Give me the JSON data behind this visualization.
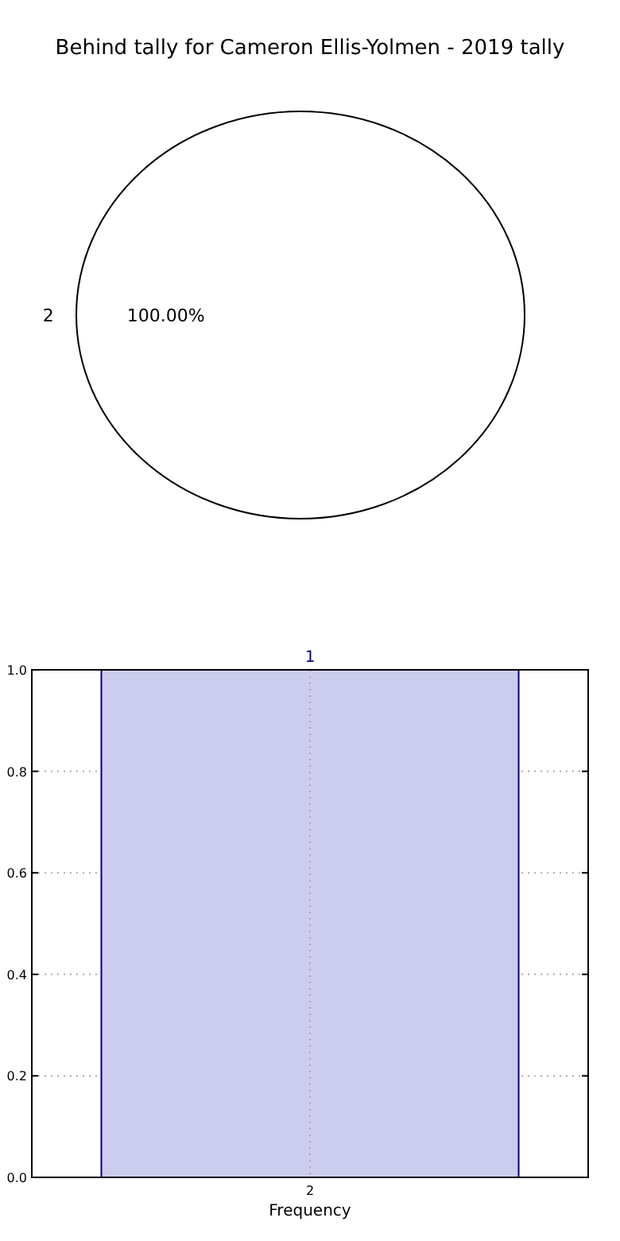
{
  "chart_data": [
    {
      "type": "pie",
      "title": "Behind tally for Cameron Ellis-Yolmen - 2019 tally",
      "categories": [
        "2"
      ],
      "values": [
        100
      ],
      "colors": [
        "#ffffff"
      ],
      "value_labels": [
        "100.00%"
      ]
    },
    {
      "type": "bar",
      "xlabel": "Frequency",
      "categories": [
        "2"
      ],
      "values": [
        1
      ],
      "color": "#ccccee",
      "ylim": [
        0,
        1
      ],
      "yticks": [
        {
          "value": 0,
          "label": "0.0"
        },
        {
          "value": 0.2,
          "label": "0.2"
        },
        {
          "value": 0.4,
          "label": "0.4"
        },
        {
          "value": 0.6,
          "label": "0.6"
        },
        {
          "value": 0.8,
          "label": "0.8"
        },
        {
          "value": 1,
          "label": "1.0"
        }
      ],
      "grid": true,
      "line_style": "dotted",
      "data_labels": true
    }
  ]
}
